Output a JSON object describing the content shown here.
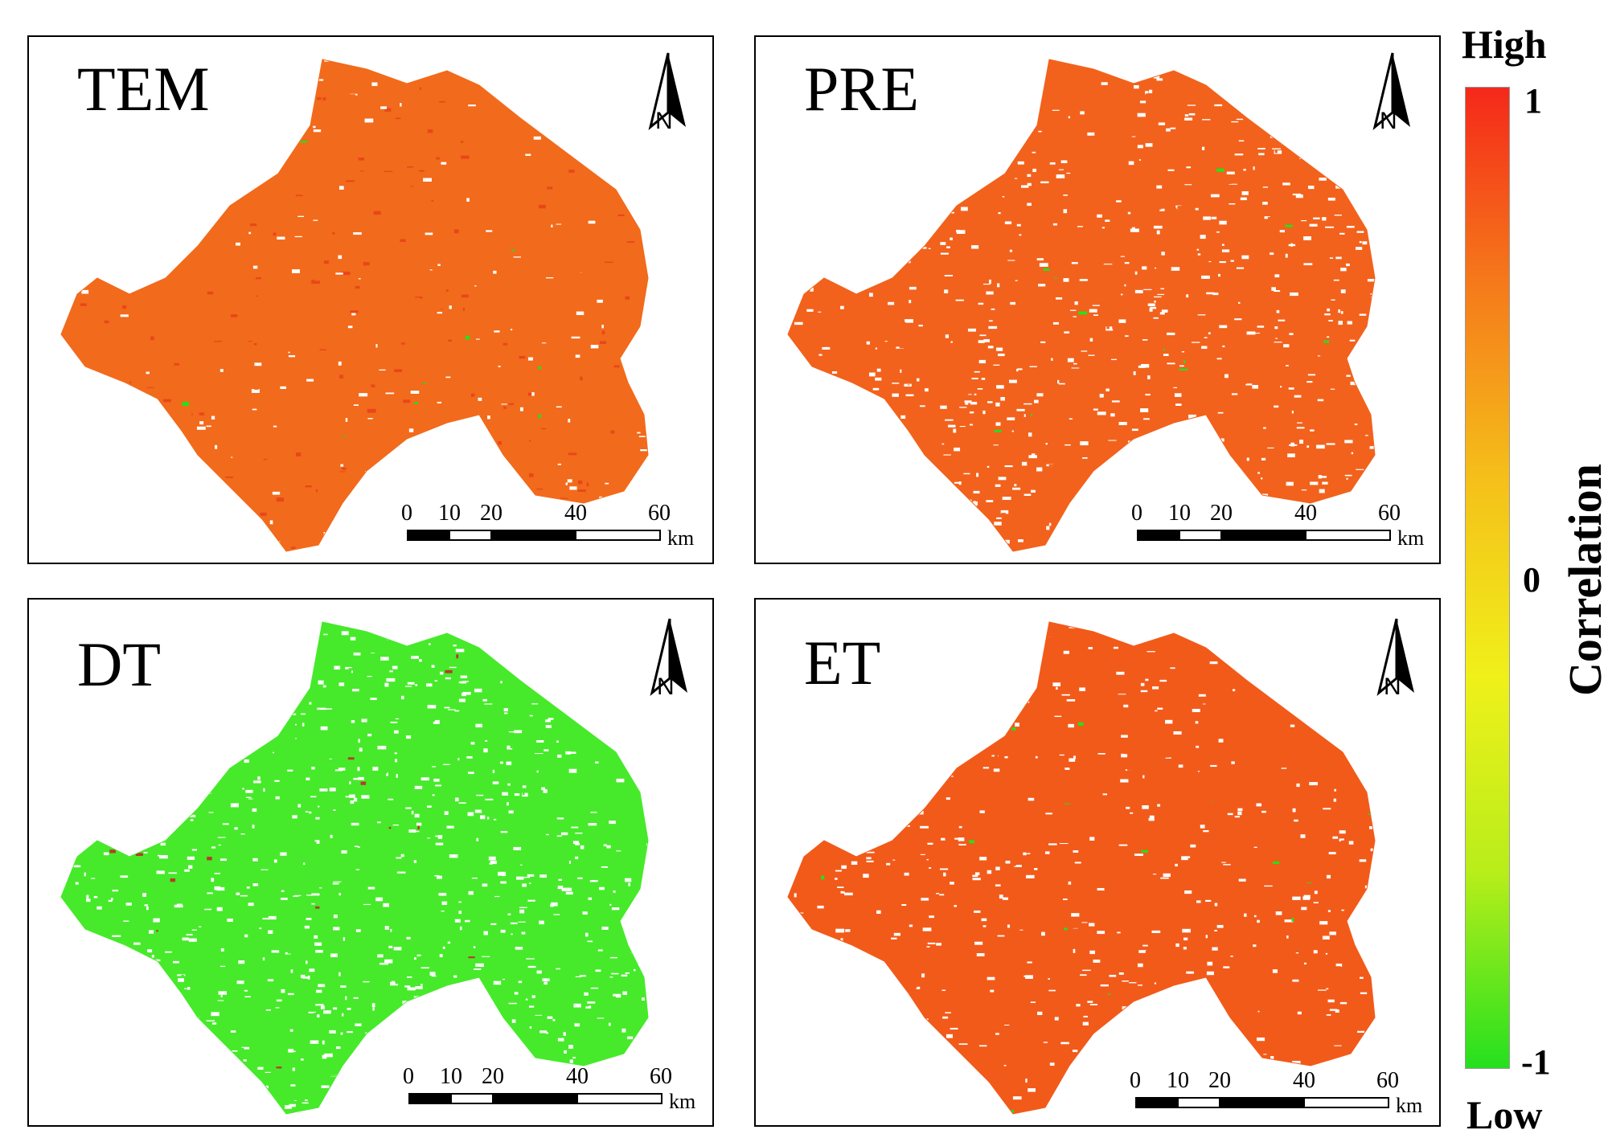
{
  "panels": [
    {
      "id": "tem",
      "title": "TEM",
      "dominant": "#f26a1b",
      "secondary": "#e8461a",
      "accent": "#25e01e",
      "white_fraction": 0.15
    },
    {
      "id": "pre",
      "title": "PRE",
      "dominant": "#f2621c",
      "secondary": "#ffffff",
      "accent": "#25e01e",
      "white_fraction": 0.45
    },
    {
      "id": "dt",
      "title": "DT",
      "dominant": "#46ea2a",
      "secondary": "#ffffff",
      "accent": "#b83a2a",
      "white_fraction": 0.55
    },
    {
      "id": "et",
      "title": "ET",
      "dominant": "#f25a1a",
      "secondary": "#ffffff",
      "accent": "#25e01e",
      "white_fraction": 0.25
    }
  ],
  "north_arrow": {
    "label": "N"
  },
  "scale_bar": {
    "ticks": [
      "0",
      "10",
      "20",
      "40",
      "60"
    ],
    "unit": "km"
  },
  "legend": {
    "top_label": "High",
    "bottom_label": "Low",
    "title": "Correlation",
    "max_label": "1",
    "mid_label": "0",
    "min_label": "-1",
    "colors": [
      "#f5281a",
      "#f57a1a",
      "#f5c01a",
      "#f0f01a",
      "#b8ee1a",
      "#25e01e"
    ]
  }
}
